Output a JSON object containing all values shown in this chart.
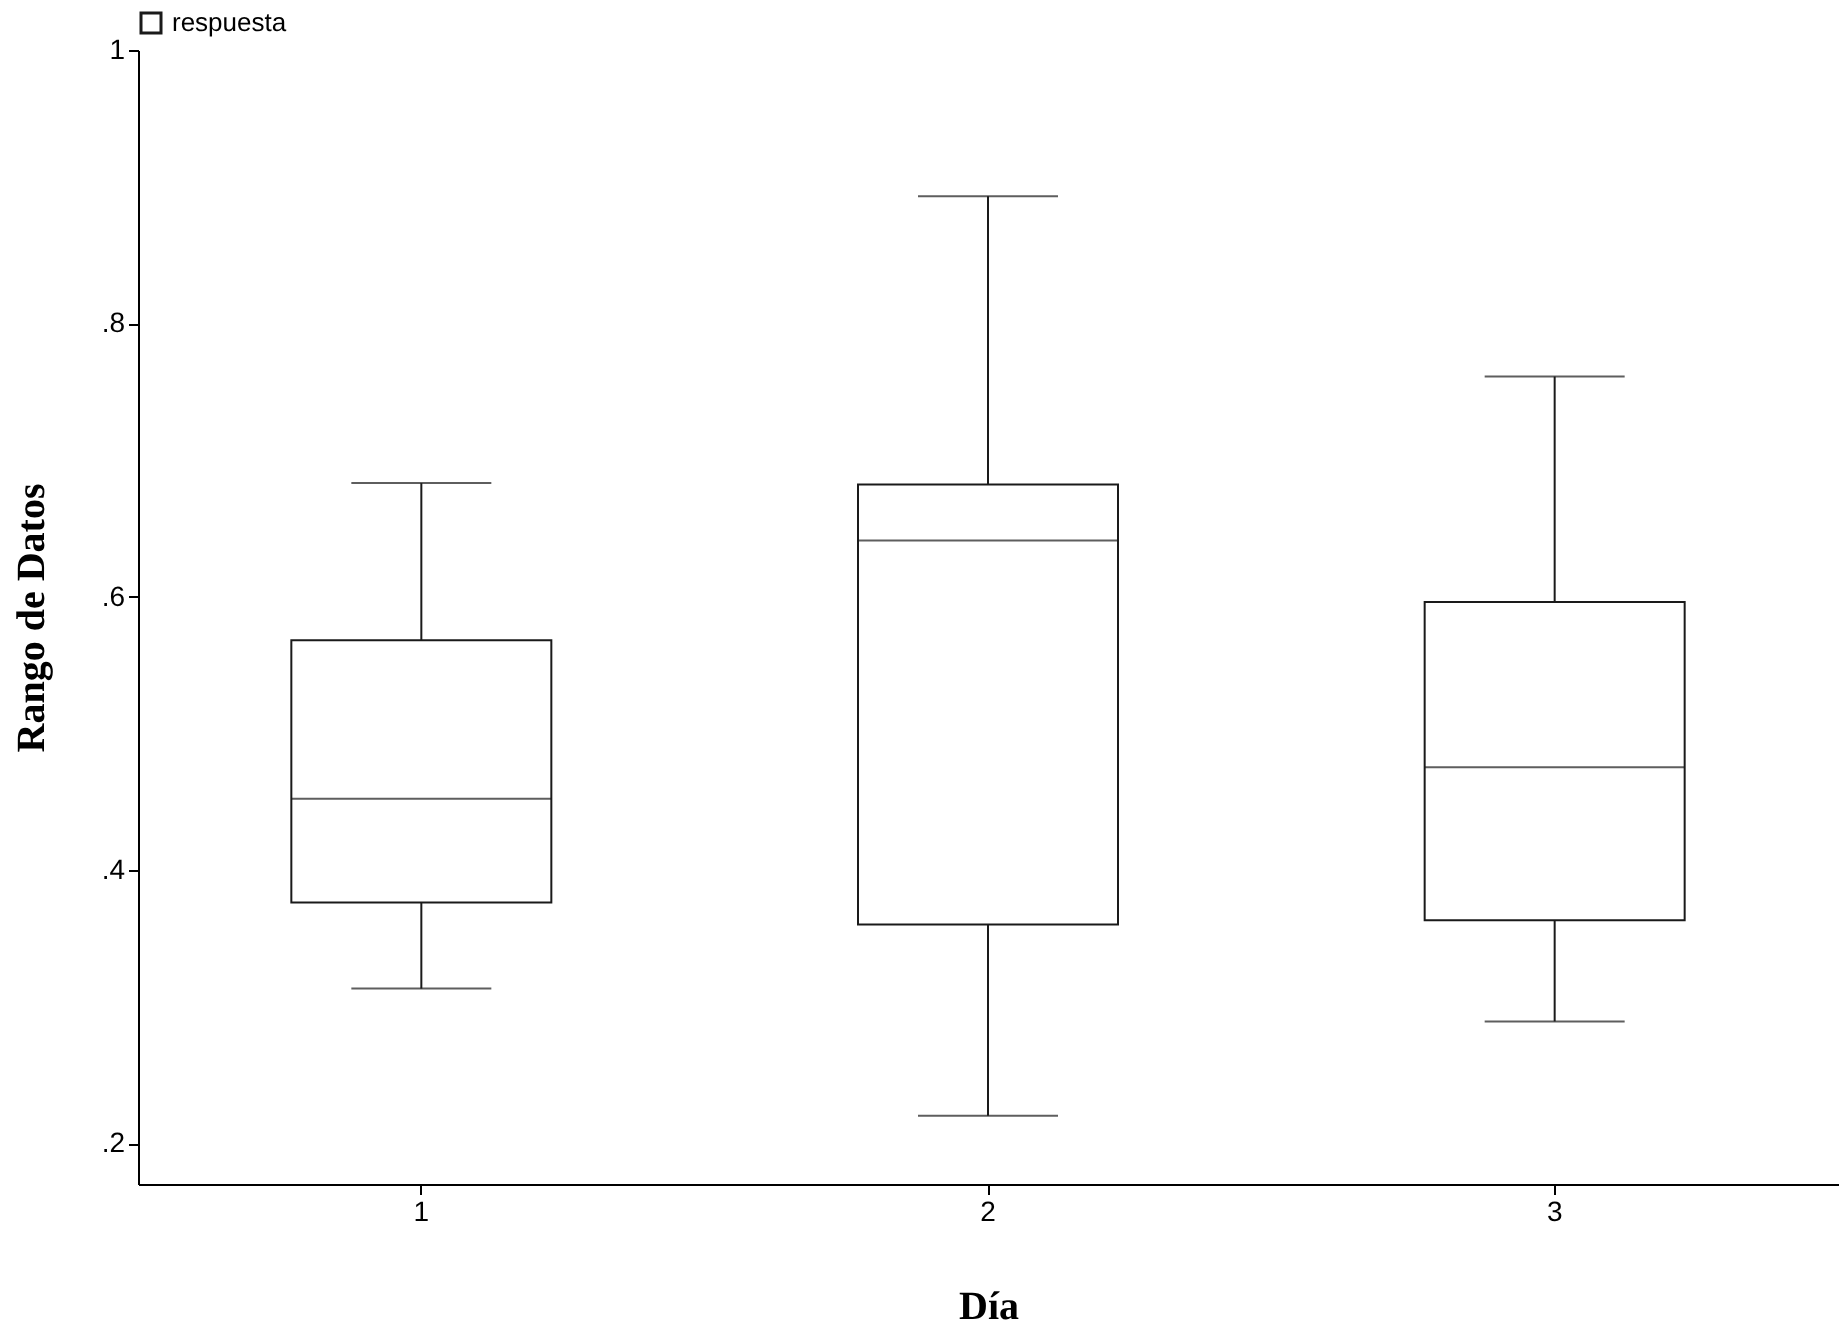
{
  "chart_data": {
    "type": "box",
    "xlabel": "Día",
    "ylabel": "Rango de Datos",
    "categories": [
      "1",
      "2",
      "3"
    ],
    "series": [
      {
        "name": "respuesta",
        "color": "#1a1a1a",
        "boxes": [
          {
            "low": 0.313,
            "q1": 0.376,
            "median": 0.452,
            "q3": 0.568,
            "high": 0.683
          },
          {
            "low": 0.22,
            "q1": 0.36,
            "median": 0.641,
            "q3": 0.682,
            "high": 0.893
          },
          {
            "low": 0.289,
            "q1": 0.363,
            "median": 0.475,
            "q3": 0.596,
            "high": 0.761
          }
        ]
      }
    ],
    "ylim": [
      0.17,
      1
    ],
    "yticks": [
      {
        "value": 0.2,
        "label": ".2"
      },
      {
        "value": 0.4,
        "label": ".4"
      },
      {
        "value": 0.6,
        "label": ".6"
      },
      {
        "value": 0.8,
        "label": ".8"
      },
      {
        "value": 1,
        "label": "1"
      }
    ],
    "grid": false,
    "legend": "top left"
  }
}
